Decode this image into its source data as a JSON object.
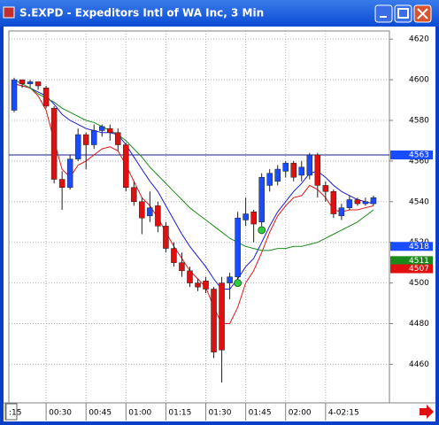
{
  "chart_data": {
    "type": "candlestick",
    "title": "S.EXPD - Expeditors Intl of WA Inc, 3 Min",
    "x": [
      18,
      21,
      24,
      27,
      30,
      33,
      36,
      39,
      42,
      45,
      48,
      51,
      54,
      57,
      60,
      63,
      66,
      69,
      72,
      75,
      78,
      81,
      84,
      87,
      90,
      93,
      96,
      99,
      102,
      105,
      108,
      111,
      114,
      117,
      120,
      123,
      126,
      129,
      132,
      135,
      138,
      141,
      144,
      147,
      150,
      153
    ],
    "open": [
      4585,
      4600,
      4598,
      4599,
      4596,
      4586,
      4551,
      4547,
      4561,
      4573,
      4568,
      4575,
      4576,
      4574,
      4568,
      4547,
      4540,
      4533,
      4538,
      4528,
      4517,
      4510,
      4506,
      4500,
      4501,
      4497,
      4500,
      4500,
      4503,
      4531,
      4535,
      4530,
      4548,
      4550,
      4555,
      4559,
      4553,
      4553,
      4563,
      4548,
      4545,
      4533,
      4537,
      4541,
      4539,
      4539
    ],
    "high": [
      4601,
      4600,
      4600,
      4598,
      4597,
      4587,
      4555,
      4563,
      4576,
      4574,
      4578,
      4578,
      4578,
      4576,
      4569,
      4550,
      4542,
      4545,
      4540,
      4530,
      4520,
      4515,
      4508,
      4502,
      4503,
      4498,
      4503,
      4505,
      4535,
      4542,
      4536,
      4554,
      4556,
      4558,
      4560,
      4560,
      4560,
      4564,
      4564,
      4550,
      4546,
      4539,
      4543,
      4542,
      4542,
      4543
    ],
    "low": [
      4584,
      4596,
      4596,
      4595,
      4586,
      4549,
      4536,
      4546,
      4560,
      4556,
      4566,
      4572,
      4570,
      4565,
      4545,
      4538,
      4524,
      4530,
      4525,
      4515,
      4508,
      4503,
      4498,
      4496,
      4495,
      4463,
      4451,
      4492,
      4501,
      4528,
      4520,
      4528,
      4545,
      4548,
      4552,
      4550,
      4550,
      4551,
      4542,
      4540,
      4532,
      4531,
      4536,
      4538,
      4538,
      4538
    ],
    "close": [
      4600,
      4598,
      4599,
      4597,
      4587,
      4551,
      4547,
      4561,
      4573,
      4568,
      4575,
      4577,
      4574,
      4568,
      4547,
      4540,
      4532,
      4537,
      4528,
      4517,
      4510,
      4506,
      4500,
      4498,
      4497,
      4466,
      4467,
      4503,
      4532,
      4534,
      4529,
      4552,
      4554,
      4556,
      4559,
      4552,
      4557,
      4563,
      4548,
      4545,
      4534,
      4537,
      4541,
      4539,
      4540,
      4542
    ],
    "up_color": "#1a4cff",
    "down_color": "#e01010",
    "lines": [
      {
        "color": "#1a1adc",
        "values": [
          4598,
          4597,
          4596,
          4594,
          4592,
          4588,
          4583,
          4580,
          4578,
          4576,
          4575,
          4574,
          4574,
          4573,
          4568,
          4562,
          4556,
          4550,
          4545,
          4538,
          4531,
          4524,
          4518,
          4513,
          4508,
          4502,
          4497,
          4497,
          4502,
          4508,
          4512,
          4520,
          4528,
          4535,
          4540,
          4545,
          4549,
          4554,
          4555,
          4552,
          4548,
          4545,
          4543,
          4541,
          4540,
          4539
        ]
      },
      {
        "color": "#e01818",
        "values": [
          4598,
          4597,
          4596,
          4592,
          4585,
          4570,
          4556,
          4552,
          4558,
          4560,
          4563,
          4566,
          4567,
          4565,
          4558,
          4550,
          4542,
          4538,
          4532,
          4525,
          4518,
          4512,
          4506,
          4502,
          4498,
          4488,
          4480,
          4480,
          4488,
          4500,
          4506,
          4515,
          4525,
          4533,
          4538,
          4542,
          4543,
          4548,
          4546,
          4542,
          4536,
          4535,
          4536,
          4536,
          4537,
          4538
        ]
      },
      {
        "color": "#1a8a1a",
        "values": [
          4600,
          4598,
          4596,
          4593,
          4591,
          4589,
          4586,
          4584,
          4582,
          4580,
          4579,
          4577,
          4575,
          4573,
          4570,
          4566,
          4562,
          4557,
          4553,
          4549,
          4545,
          4541,
          4537,
          4534,
          4531,
          4528,
          4525,
          4522,
          4520,
          4518,
          4517,
          4516,
          4516,
          4517,
          4517,
          4518,
          4518,
          4519,
          4520,
          4522,
          4524,
          4526,
          4528,
          4530,
          4533,
          4536
        ]
      }
    ],
    "hline": {
      "value": 4563,
      "color": "#1a1a8c"
    },
    "markers": {
      "x": [
        102,
        111
      ],
      "values": [
        4500,
        4526
      ],
      "color": "#2ecc40"
    },
    "price_labels": [
      {
        "value": 4563,
        "color": "#1a4cff"
      },
      {
        "value": 4518,
        "color": "#1a4cff"
      },
      {
        "value": 4511,
        "color": "#1a8a1a"
      },
      {
        "value": 4507,
        "color": "#e01010"
      }
    ],
    "xlim": [
      16,
      159
    ],
    "ylim": [
      4441,
      4624
    ],
    "xticks": [
      {
        "value": 15,
        "label": ":15"
      },
      {
        "value": 30,
        "label": "00:30"
      },
      {
        "value": 45,
        "label": "00:45"
      },
      {
        "value": 60,
        "label": "01:00"
      },
      {
        "value": 75,
        "label": "01:15"
      },
      {
        "value": 90,
        "label": "01:30"
      },
      {
        "value": 105,
        "label": "01:45"
      },
      {
        "value": 120,
        "label": "02:00"
      },
      {
        "value": 135,
        "label": "4-02:15"
      }
    ],
    "yticks": [
      4460,
      4480,
      4500,
      4520,
      4540,
      4560,
      4580,
      4600,
      4620
    ],
    "grid": true
  }
}
